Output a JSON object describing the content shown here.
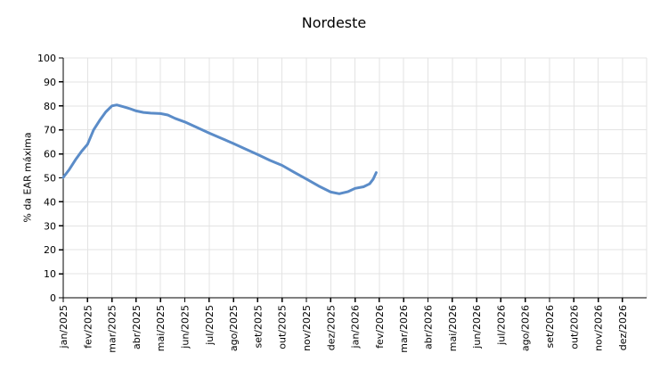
{
  "chart_data": {
    "type": "line",
    "title": "Nordeste",
    "ylabel": "% da EAR máxima",
    "xlabel": "",
    "ylim": [
      0,
      100
    ],
    "ytick_step": 10,
    "grid": true,
    "legend_position": "none",
    "x_categories": [
      "jan/2025",
      "fev/2025",
      "mar/2025",
      "abr/2025",
      "mai/2025",
      "jun/2025",
      "jul/2025",
      "ago/2025",
      "set/2025",
      "out/2025",
      "nov/2025",
      "dez/2025",
      "jan/2026",
      "fev/2026",
      "mar/2026",
      "abr/2026",
      "mai/2026",
      "jun/2026",
      "jul/2026",
      "ago/2026",
      "set/2026",
      "out/2026",
      "nov/2026",
      "dez/2026"
    ],
    "series": [
      {
        "color": "#5b8cc8",
        "points_months_from_jan2025_vs_percent": [
          [
            0,
            50.2
          ],
          [
            0.25,
            53.5
          ],
          [
            0.5,
            57.5
          ],
          [
            0.75,
            61
          ],
          [
            1,
            64
          ],
          [
            1.25,
            70
          ],
          [
            1.5,
            74
          ],
          [
            1.75,
            77.5
          ],
          [
            2,
            80
          ],
          [
            2.2,
            80.4
          ],
          [
            2.5,
            79.6
          ],
          [
            2.75,
            78.8
          ],
          [
            3,
            77.9
          ],
          [
            3.3,
            77.3
          ],
          [
            3.6,
            77
          ],
          [
            4,
            76.8
          ],
          [
            4.3,
            76.2
          ],
          [
            4.6,
            74.8
          ],
          [
            5,
            73.3
          ],
          [
            5.5,
            71
          ],
          [
            6,
            68.7
          ],
          [
            6.5,
            66.5
          ],
          [
            7,
            64.3
          ],
          [
            7.5,
            62
          ],
          [
            8,
            59.7
          ],
          [
            8.5,
            57.3
          ],
          [
            9,
            55.2
          ],
          [
            9.5,
            52.3
          ],
          [
            10,
            49.5
          ],
          [
            10.5,
            46.6
          ],
          [
            11,
            44.1
          ],
          [
            11.35,
            43.4
          ],
          [
            11.7,
            44.2
          ],
          [
            12,
            45.6
          ],
          [
            12.35,
            46.3
          ],
          [
            12.6,
            47.5
          ],
          [
            12.75,
            49.5
          ],
          [
            12.87,
            52.2
          ]
        ]
      }
    ],
    "colors": {
      "gridline": "#e3e3e3",
      "axis": "#000000",
      "tick_text": "#000000",
      "background": "#ffffff"
    }
  }
}
